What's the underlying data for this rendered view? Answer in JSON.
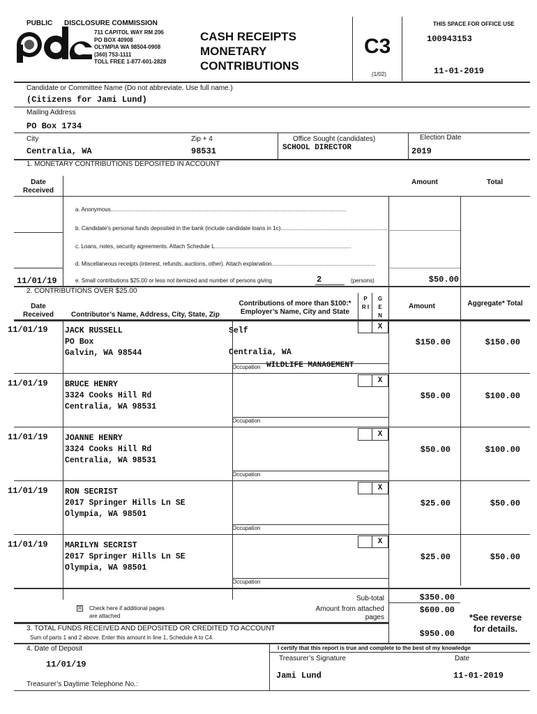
{
  "header": {
    "agency_left": "PUBLIC",
    "agency_right": "DISCLOSURE COMMISSION",
    "logo": "pdc",
    "address": [
      "711 CAPITOL WAY RM 206",
      "PO BOX 40908",
      "OLYMPIA WA 98504-0908",
      "(360) 753-1111",
      "TOLL FREE 1-877-601-2828"
    ],
    "title": [
      "CASH RECEIPTS",
      "MONETARY",
      "CONTRIBUTIONS"
    ],
    "form_code": "C3",
    "form_version": "(1/02)",
    "office_use_label": "THIS SPACE FOR OFFICE USE",
    "office_id": "100943153",
    "office_date": "11-01-2019"
  },
  "committee": {
    "name_label": "Candidate or Committee Name (Do not abbreviate.  Use full name.)",
    "name": "(Citizens for Jami Lund)",
    "address_label": "Mailing Address",
    "address": "PO Box 1734",
    "city_label": "City",
    "city": "Centralia, WA",
    "zip_label": "Zip + 4",
    "zip": "98531",
    "office_label": "Office Sought (candidates)",
    "office": "SCHOOL DIRECTOR",
    "election_label": "Election Date",
    "election": "2019"
  },
  "section1": {
    "title": "1. MONETARY CONTRIBUTIONS DEPOSITED IN ACCOUNT",
    "date_header": "Date Received",
    "amount_header": "Amount",
    "total_header": "Total",
    "lines": {
      "a": "a. Anonymous",
      "b": "b. Candidate’s personal funds deposited in the bank (include candidate loans in 1c)",
      "c": "c. Loans, notes, security agreements.  Attach Schedule L",
      "d": "d. Miscellaneous receipts (interest, refunds, auctions, other).  Attach explanation",
      "e": "e. Small contributions $25.00 or less not itemized and number of persons giving"
    },
    "e_date": "11/01/19",
    "e_persons": "2",
    "persons_label": "(persons)",
    "e_amount": "$50.00"
  },
  "section2": {
    "title": "2. CONTRIBUTIONS OVER $25.00",
    "date_header": "Date Received",
    "contributor_header": "Contributor’s Name, Address, City, State, Zip",
    "employer_header": "Contributions of more than $100:* Employer’s Name, City and State",
    "pri_header": "P R I",
    "gen_header": "G E N",
    "amount_header": "Amount",
    "aggregate_header": "Aggregate* Total",
    "occupation_label": "Occupation",
    "contributions": [
      {
        "date": "11/01/19",
        "name": "JACK RUSSELL",
        "addr1": "PO Box",
        "addr2": "Galvin, WA 98544",
        "employer": "Self",
        "employer_city": "Centralia, WA",
        "occupation": "WILDLIFE MANAGEMENT",
        "pri": "",
        "gen": "X",
        "amount": "$150.00",
        "aggregate": "$150.00"
      },
      {
        "date": "11/01/19",
        "name": "BRUCE HENRY",
        "addr1": "3324 Cooks Hill Rd",
        "addr2": "Centralia, WA 98531",
        "employer": "",
        "employer_city": "",
        "occupation": "",
        "pri": "",
        "gen": "X",
        "amount": "$50.00",
        "aggregate": "$100.00"
      },
      {
        "date": "11/01/19",
        "name": "JOANNE HENRY",
        "addr1": "3324 Cooks Hill Rd",
        "addr2": "Centralia, WA 98531",
        "employer": "",
        "employer_city": "",
        "occupation": "",
        "pri": "",
        "gen": "X",
        "amount": "$50.00",
        "aggregate": "$100.00"
      },
      {
        "date": "11/01/19",
        "name": "RON SECRIST",
        "addr1": "2017 Springer Hills Ln SE",
        "addr2": "Olympia, WA 98501",
        "employer": "",
        "employer_city": "",
        "occupation": "",
        "pri": "",
        "gen": "X",
        "amount": "$25.00",
        "aggregate": "$50.00"
      },
      {
        "date": "11/01/19",
        "name": "MARILYN SECRIST",
        "addr1": "2017 Springer Hills Ln SE",
        "addr2": "Olympia, WA 98501",
        "employer": "",
        "employer_city": "",
        "occupation": "",
        "pri": "",
        "gen": "X",
        "amount": "$25.00",
        "aggregate": "$50.00"
      }
    ],
    "additional_pages_label": "Check here if additional pages are attached",
    "additional_pages_checked": true,
    "subtotal_label": "Sub-total",
    "subtotal": "$350.00",
    "attached_label": "Amount from attached pages",
    "attached": "$600.00",
    "see_reverse": "*See reverse for details."
  },
  "section3": {
    "title": "3. TOTAL FUNDS RECEIVED AND DEPOSITED OR CREDITED TO ACCOUNT",
    "subtitle": "Sum of parts 1 and 2 above.  Enter this amount in line 1, Schedule A to C4.",
    "total": "$950.00"
  },
  "section4": {
    "deposit_label": "4. Date of Deposit",
    "deposit_date": "11/01/19",
    "phone_label": "Treasurer’s Daytime Telephone No.:",
    "certify": "I certify that this report is true and complete to the best of my knowledge",
    "signature_label": "Treasurer’s Signature",
    "signature": "Jami Lund",
    "date_label": "Date",
    "date": "11-01-2019"
  }
}
